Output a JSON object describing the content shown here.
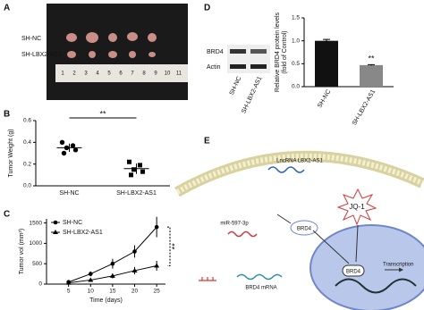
{
  "panel_labels": [
    "A",
    "B",
    "C",
    "D",
    "E"
  ],
  "photo": {
    "row_labels": [
      "SH-NC",
      "SH-LBX2-AS1"
    ],
    "ruler": [
      "1",
      "2",
      "3",
      "4",
      "5",
      "6",
      "7",
      "8",
      "9",
      "10",
      "11"
    ]
  },
  "blot": {
    "proteins": [
      "BRD4",
      "Actin"
    ],
    "lanes": [
      "SH-NC",
      "SH-LBX2-AS1"
    ]
  },
  "diagram": {
    "lncrna": "LncRNA LBX2-AS1",
    "mirna": "miR-597-3p",
    "mrna": "BRD4 mRNA",
    "protein": "BRD4",
    "drug": "JQ-1",
    "nuclear_protein": "BRD4",
    "process": "Transcription"
  },
  "chart_data": [
    {
      "type": "dot",
      "ylabel": "Tumor Weight (g)",
      "categories": [
        "SH-NC",
        "SH-LBX2-AS1"
      ],
      "points": [
        [
          0.4,
          0.37,
          0.35,
          0.33,
          0.3
        ],
        [
          0.22,
          0.19,
          0.15,
          0.13,
          0.1
        ]
      ],
      "markers": [
        "circle",
        "square"
      ],
      "color": "#000000",
      "ylim": [
        0,
        0.6
      ],
      "yticks": [
        {
          "value": 0,
          "label": "0.0"
        },
        0.2,
        0.4,
        0.6
      ],
      "annotation": "**"
    },
    {
      "type": "line",
      "xlabel": "Time (days)",
      "ylabel": "Tumor vol (mm³)",
      "x": [
        5,
        10,
        15,
        20,
        25
      ],
      "series": [
        {
          "name": "SH-NC",
          "color": "#000000",
          "marker": "circle",
          "values": [
            50,
            250,
            500,
            800,
            1400
          ],
          "errors": [
            20,
            60,
            120,
            150,
            250
          ]
        },
        {
          "name": "SH-LBX2-AS1",
          "color": "#000000",
          "marker": "triangle",
          "values": [
            30,
            100,
            200,
            330,
            450
          ],
          "errors": [
            10,
            30,
            60,
            90,
            120
          ]
        }
      ],
      "xlim": [
        0,
        27
      ],
      "xticks": [
        5,
        10,
        15,
        20,
        25
      ],
      "ylim": [
        0,
        1600
      ],
      "yticks": [
        0,
        500,
        1000,
        1500
      ],
      "annotation": "**"
    },
    {
      "type": "bar",
      "ylabel": [
        "Relative BRD4 protein levels",
        "(fold of Control)"
      ],
      "categories": [
        "SH-NC",
        "SH-LBX2-AS1"
      ],
      "values": [
        1.0,
        0.47
      ],
      "errors": [
        0.03,
        0.01
      ],
      "colors": [
        "#111111",
        "#888888"
      ],
      "ylim": [
        0,
        1.5
      ],
      "yticks": [
        {
          "value": 0,
          "label": "0.0"
        },
        0.5,
        {
          "value": 1,
          "label": "1.0"
        },
        1.5
      ],
      "annotation": "**"
    }
  ]
}
